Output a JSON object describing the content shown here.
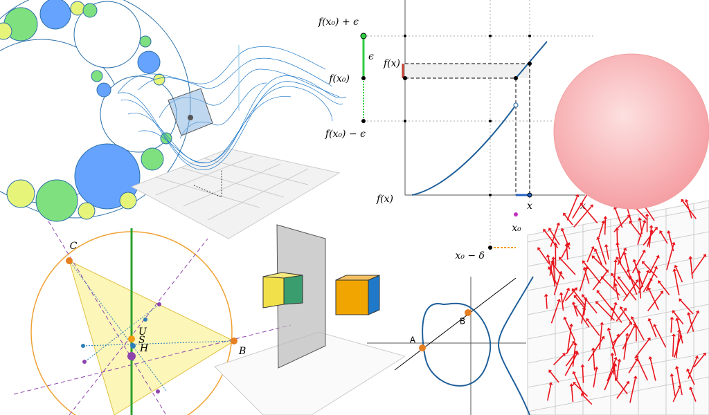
{
  "epsilon_delta": {
    "f_x0_plus_eps": "f(x₀) + ϵ",
    "eps": "ϵ",
    "f_x_top": "f(x)",
    "f_x0": "f(x₀)",
    "f_x0_minus_eps": "f(x₀) − ϵ",
    "f_x_axis": "f(x)",
    "x_point": "x",
    "x_axis": "x",
    "x0": "x₀",
    "x0_minus_delta": "x₀ − δ"
  },
  "triangle": {
    "C": "C",
    "U": "U",
    "S": "S",
    "H": "H",
    "B": "B"
  },
  "curve": {
    "A": "A",
    "B": "B"
  }
}
